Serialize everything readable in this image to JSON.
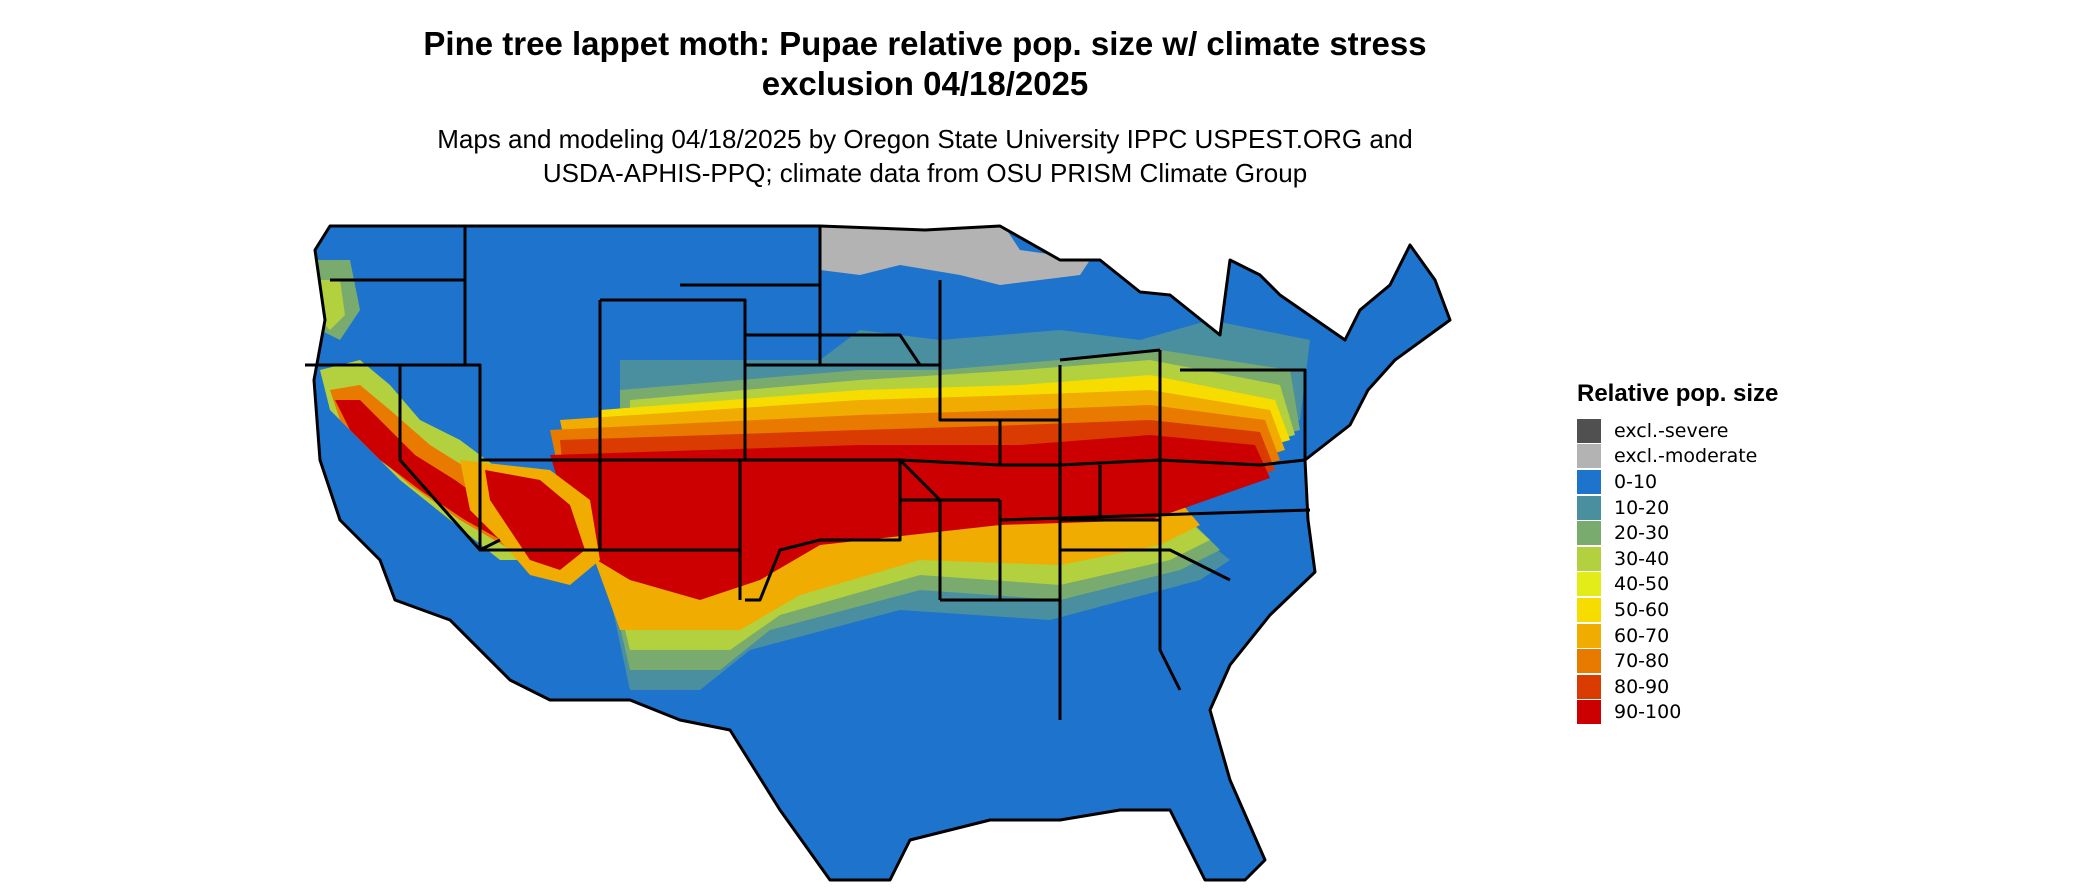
{
  "title": {
    "line1": "Pine tree lappet moth: Pupae relative pop. size w/ climate stress",
    "line2": "exclusion 04/18/2025"
  },
  "subtitle": {
    "line1": "Maps and modeling 04/18/2025 by Oregon State University IPPC USPEST.ORG and",
    "line2": "USDA-APHIS-PPQ; climate data from OSU PRISM Climate Group"
  },
  "legend": {
    "title": "Relative pop. size",
    "items": [
      {
        "label": "excl.-severe",
        "color": "#505050"
      },
      {
        "label": "excl.-moderate",
        "color": "#b3b3b3"
      },
      {
        "label": "0-10",
        "color": "#1e73cd"
      },
      {
        "label": "10-20",
        "color": "#4a8fa0"
      },
      {
        "label": "20-30",
        "color": "#7aab6e"
      },
      {
        "label": "30-40",
        "color": "#b3d03f"
      },
      {
        "label": "40-50",
        "color": "#e3ec18"
      },
      {
        "label": "50-60",
        "color": "#f7dc00"
      },
      {
        "label": "60-70",
        "color": "#f0ac00"
      },
      {
        "label": "70-80",
        "color": "#e87a00"
      },
      {
        "label": "80-90",
        "color": "#d93b00"
      },
      {
        "label": "90-100",
        "color": "#cc0000"
      }
    ]
  }
}
